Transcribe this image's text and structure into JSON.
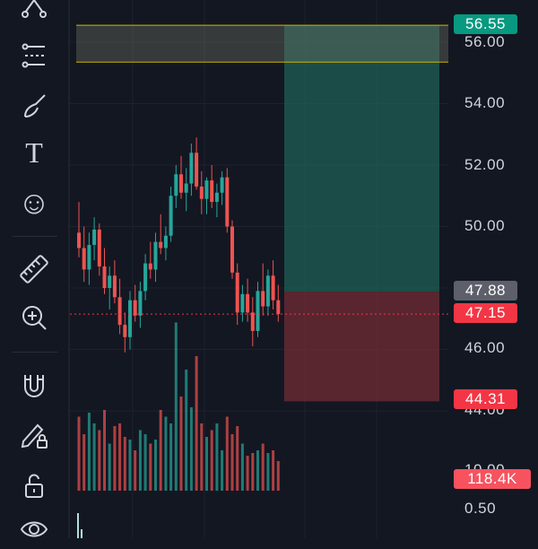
{
  "toolbar": {
    "tools": [
      {
        "name": "pattern-tool-icon",
        "label": "Patterns"
      },
      {
        "name": "fib-tool-icon",
        "label": "Gann and Fibonacci"
      },
      {
        "name": "brush-tool-icon",
        "label": "Brush"
      },
      {
        "name": "text-tool-icon",
        "label": "Text"
      },
      {
        "name": "emoji-tool-icon",
        "label": "Icons"
      },
      {
        "name": "ruler-tool-icon",
        "label": "Measure"
      },
      {
        "name": "zoom-in-tool-icon",
        "label": "Zoom In"
      },
      {
        "name": "magnet-tool-icon",
        "label": "Magnet Mode"
      },
      {
        "name": "lock-drawing-icon",
        "label": "Lock Drawings"
      },
      {
        "name": "unlock-icon",
        "label": "Unlock"
      },
      {
        "name": "eye-icon",
        "label": "Hide Drawings"
      }
    ],
    "text_glyph": "T",
    "emoji_glyph": "☺"
  },
  "price_axis": {
    "ticks": [
      "56.00",
      "54.00",
      "52.00",
      "50.00",
      "46.00",
      "44.00",
      "0.50"
    ],
    "volume_tick": "10.00"
  },
  "badges": {
    "target": "56.55",
    "entry": "47.88",
    "current": "47.15",
    "stop": "44.31",
    "volume": "118.4K"
  },
  "colors": {
    "up": "#26a69a",
    "down": "#ef5350",
    "target_zone": "#1f5f55",
    "stop_zone": "#6b2b34",
    "alert_box": "#c9b400"
  },
  "chart_data": {
    "type": "candlestick",
    "ylim": [
      42.8,
      56.8
    ],
    "candles": [
      [
        49.8,
        50.8,
        49.0,
        49.3
      ],
      [
        49.3,
        50.0,
        48.2,
        48.6
      ],
      [
        48.6,
        49.8,
        48.1,
        49.4
      ],
      [
        49.4,
        50.3,
        48.9,
        49.9
      ],
      [
        49.9,
        50.1,
        48.4,
        48.7
      ],
      [
        48.7,
        49.3,
        47.8,
        48.0
      ],
      [
        48.0,
        48.7,
        47.3,
        48.4
      ],
      [
        48.4,
        48.9,
        47.5,
        47.7
      ],
      [
        47.7,
        48.3,
        46.5,
        46.8
      ],
      [
        46.8,
        47.2,
        45.9,
        46.4
      ],
      [
        46.4,
        47.9,
        46.0,
        47.6
      ],
      [
        47.6,
        48.1,
        46.9,
        47.1
      ],
      [
        47.1,
        48.2,
        46.7,
        47.9
      ],
      [
        47.9,
        49.1,
        47.6,
        48.8
      ],
      [
        48.8,
        49.5,
        48.3,
        48.6
      ],
      [
        48.6,
        49.8,
        48.2,
        49.5
      ],
      [
        49.5,
        50.4,
        49.1,
        49.3
      ],
      [
        49.3,
        50.0,
        48.9,
        49.7
      ],
      [
        49.7,
        51.3,
        49.5,
        51.0
      ],
      [
        51.0,
        52.0,
        50.6,
        51.7
      ],
      [
        51.7,
        52.3,
        50.9,
        51.1
      ],
      [
        51.1,
        51.9,
        50.5,
        51.4
      ],
      [
        51.4,
        52.7,
        51.0,
        52.4
      ],
      [
        52.4,
        52.9,
        51.2,
        51.3
      ],
      [
        51.3,
        51.8,
        50.4,
        50.9
      ],
      [
        50.9,
        51.6,
        50.4,
        51.5
      ],
      [
        51.5,
        52.0,
        50.6,
        50.8
      ],
      [
        50.8,
        51.4,
        50.3,
        51.1
      ],
      [
        51.1,
        51.8,
        50.7,
        51.6
      ],
      [
        51.6,
        51.9,
        49.8,
        50.0
      ],
      [
        50.0,
        50.2,
        48.3,
        48.5
      ],
      [
        48.5,
        48.8,
        46.8,
        47.2
      ],
      [
        47.2,
        48.1,
        46.9,
        47.8
      ],
      [
        47.8,
        48.3,
        46.9,
        47.2
      ],
      [
        47.2,
        47.7,
        46.1,
        46.6
      ],
      [
        46.6,
        48.2,
        46.4,
        47.9
      ],
      [
        47.9,
        48.8,
        47.1,
        47.4
      ],
      [
        47.4,
        48.6,
        47.1,
        48.4
      ],
      [
        48.4,
        48.9,
        47.3,
        47.6
      ],
      [
        47.6,
        48.1,
        46.9,
        47.15
      ]
    ],
    "volumes": [
      0.55,
      0.42,
      0.58,
      0.5,
      0.45,
      0.6,
      0.35,
      0.48,
      0.5,
      0.4,
      0.38,
      0.3,
      0.45,
      0.42,
      0.35,
      0.38,
      0.6,
      0.55,
      0.5,
      1.25,
      0.7,
      0.9,
      0.62,
      1.0,
      0.5,
      0.4,
      0.45,
      0.5,
      0.3,
      0.55,
      0.42,
      0.48,
      0.35,
      0.26,
      0.28,
      0.3,
      0.35,
      0.28,
      0.3,
      0.22
    ],
    "target_price": 56.55,
    "entry_price": 47.88,
    "stop_price": 44.31,
    "current_price": 47.15,
    "alert_zone": [
      55.35,
      56.55
    ]
  }
}
